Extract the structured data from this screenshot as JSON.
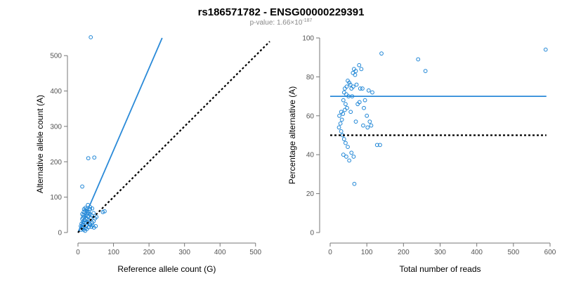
{
  "title": "rs186571782 - ENSG00000229391",
  "subtitle_prefix": "p-value: 1.66×10",
  "subtitle_exp": "-187",
  "colors": {
    "points": "#1f86d6",
    "fit": "#2a8ad8",
    "reference": "#000000",
    "axis": "#777777"
  },
  "chart_data": [
    {
      "type": "scatter",
      "xlabel": "Reference allele count (G)",
      "ylabel": "Alternative allele count (A)",
      "xlim": [
        0,
        540
      ],
      "ylim": [
        0,
        550
      ],
      "xticks": [
        0,
        100,
        200,
        300,
        400,
        500
      ],
      "yticks": [
        0,
        100,
        200,
        300,
        400,
        500
      ],
      "points": [
        [
          36,
          552
        ],
        [
          29,
          210
        ],
        [
          46,
          212
        ],
        [
          12,
          130
        ],
        [
          70,
          58
        ],
        [
          75,
          60
        ],
        [
          50,
          18
        ],
        [
          34,
          72
        ],
        [
          40,
          68
        ],
        [
          28,
          78
        ],
        [
          24,
          66
        ],
        [
          20,
          62
        ],
        [
          16,
          58
        ],
        [
          12,
          52
        ],
        [
          18,
          45
        ],
        [
          22,
          40
        ],
        [
          26,
          38
        ],
        [
          30,
          35
        ],
        [
          14,
          30
        ],
        [
          10,
          25
        ],
        [
          8,
          18
        ],
        [
          12,
          12
        ],
        [
          16,
          8
        ],
        [
          20,
          5
        ],
        [
          25,
          10
        ],
        [
          30,
          15
        ],
        [
          35,
          22
        ],
        [
          40,
          28
        ],
        [
          44,
          32
        ],
        [
          48,
          40
        ],
        [
          52,
          44
        ],
        [
          38,
          48
        ],
        [
          33,
          52
        ],
        [
          28,
          55
        ],
        [
          23,
          48
        ],
        [
          18,
          35
        ],
        [
          15,
          22
        ],
        [
          11,
          15
        ],
        [
          9,
          8
        ],
        [
          14,
          42
        ],
        [
          17,
          66
        ],
        [
          21,
          70
        ],
        [
          26,
          60
        ],
        [
          31,
          58
        ],
        [
          36,
          42
        ],
        [
          41,
          20
        ],
        [
          45,
          14
        ],
        [
          19,
          28
        ],
        [
          23,
          26
        ],
        [
          27,
          30
        ],
        [
          12,
          38
        ],
        [
          16,
          50
        ],
        [
          44,
          55
        ],
        [
          32,
          26
        ],
        [
          38,
          16
        ],
        [
          24,
          20
        ],
        [
          20,
          12
        ],
        [
          29,
          46
        ],
        [
          15,
          16
        ],
        [
          34,
          66
        ]
      ],
      "lines": [
        {
          "name": "fit",
          "style": "solid",
          "points": [
            [
              0,
              0
            ],
            [
              237,
              550
            ]
          ]
        },
        {
          "name": "reference",
          "style": "dotted",
          "points": [
            [
              0,
              0
            ],
            [
              540,
              540
            ]
          ]
        }
      ]
    },
    {
      "type": "scatter",
      "xlabel": "Total number of reads",
      "ylabel": "Percentage alternative (A)",
      "xlim": [
        0,
        600
      ],
      "ylim": [
        0,
        100
      ],
      "xticks": [
        0,
        100,
        200,
        300,
        400,
        500,
        600
      ],
      "yticks": [
        0,
        20,
        40,
        60,
        80,
        100
      ],
      "points": [
        [
          588,
          94
        ],
        [
          240,
          89
        ],
        [
          260,
          83
        ],
        [
          140,
          92
        ],
        [
          79,
          86
        ],
        [
          85,
          84
        ],
        [
          65,
          84
        ],
        [
          70,
          83
        ],
        [
          62,
          82
        ],
        [
          68,
          81
        ],
        [
          48,
          78
        ],
        [
          52,
          77
        ],
        [
          55,
          76
        ],
        [
          45,
          75
        ],
        [
          40,
          74
        ],
        [
          58,
          74
        ],
        [
          63,
          75
        ],
        [
          72,
          76
        ],
        [
          88,
          74
        ],
        [
          105,
          73
        ],
        [
          115,
          72
        ],
        [
          38,
          72
        ],
        [
          44,
          71
        ],
        [
          50,
          70
        ],
        [
          36,
          68
        ],
        [
          42,
          66
        ],
        [
          46,
          64
        ],
        [
          40,
          63
        ],
        [
          30,
          62
        ],
        [
          35,
          61
        ],
        [
          25,
          60
        ],
        [
          32,
          58
        ],
        [
          28,
          56
        ],
        [
          24,
          54
        ],
        [
          30,
          52
        ],
        [
          34,
          50
        ],
        [
          38,
          48
        ],
        [
          42,
          46
        ],
        [
          48,
          44
        ],
        [
          36,
          40
        ],
        [
          44,
          39
        ],
        [
          52,
          37
        ],
        [
          58,
          41
        ],
        [
          64,
          39
        ],
        [
          66,
          25
        ],
        [
          70,
          57
        ],
        [
          80,
          67
        ],
        [
          75,
          66
        ],
        [
          92,
          64
        ],
        [
          100,
          60
        ],
        [
          108,
          57
        ],
        [
          102,
          54
        ],
        [
          112,
          55
        ],
        [
          90,
          55
        ],
        [
          56,
          62
        ],
        [
          60,
          70
        ],
        [
          82,
          74
        ],
        [
          95,
          68
        ],
        [
          128,
          45
        ],
        [
          136,
          45
        ]
      ],
      "lines": [
        {
          "name": "fit",
          "style": "solid",
          "points": [
            [
              0,
              70
            ],
            [
              590,
              70
            ]
          ]
        },
        {
          "name": "reference",
          "style": "dotted",
          "points": [
            [
              0,
              50
            ],
            [
              590,
              50
            ]
          ]
        }
      ]
    }
  ]
}
